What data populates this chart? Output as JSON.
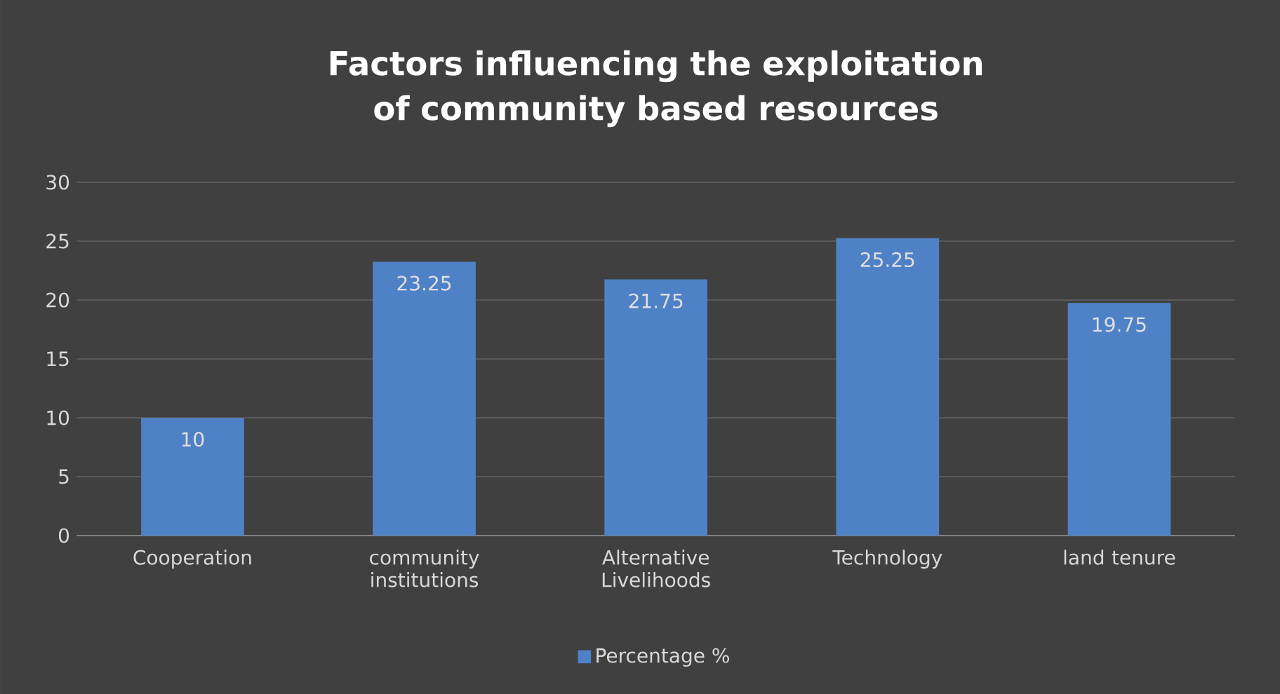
{
  "chart_data": {
    "type": "bar",
    "title": "Factors influencing the exploitation of community based resources",
    "categories": [
      "Cooperation",
      "community institutions",
      "Alternative Livelihoods",
      "Technology",
      "land tenure"
    ],
    "series": [
      {
        "name": "Percentage %",
        "color": "#4f81c7",
        "values": [
          10,
          23.25,
          21.75,
          25.25,
          19.75
        ]
      }
    ],
    "ylim": [
      0,
      30
    ],
    "yticks": [
      0,
      5,
      10,
      15,
      20,
      25,
      30
    ],
    "grid": "y",
    "legend": "bottom",
    "data_labels": true
  }
}
